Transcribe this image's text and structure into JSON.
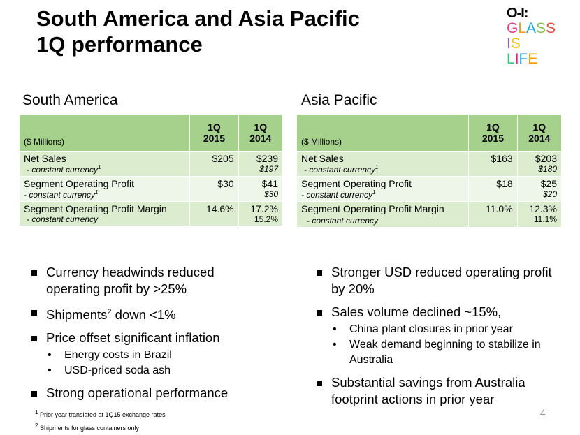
{
  "title_line1": "South America and Asia Pacific",
  "title_line2": "1Q performance",
  "logo": {
    "mark": "O-I:",
    "w1": "GLASS",
    "w2": "IS",
    "w3": "LIFE",
    "colors": [
      "#e6417f",
      "#f39c12",
      "#1aa3d9",
      "#8bc34a",
      "#e74c3c",
      "#9b59b6",
      "#f1c40f",
      "#2ecc71",
      "#e91e63",
      "#3498db",
      "#ff9800",
      "#4caf50"
    ]
  },
  "sa": {
    "heading": "South America",
    "unit": "($ Millions)",
    "col1": "1Q 2015",
    "col1a": "1Q",
    "col1b": "2015",
    "col2a": "1Q",
    "col2b": "2014",
    "r1_label": "Net Sales",
    "r1_sub": "- constant currency",
    "r1_v1": "$205",
    "r1_v2": "$239",
    "r1_v2s": "$197",
    "r2_label": "Segment Operating Profit",
    "r2_sub": "- constant currency",
    "r2_v1": "$30",
    "r2_v2": "$41",
    "r2_v2s": "$30",
    "r3_label": "Segment Operating Profit Margin",
    "r3_sub": "- constant currency",
    "r3_v1": "14.6%",
    "r3_v2": "17.2%",
    "r3_v2s": "15.2%",
    "b1": "Currency headwinds reduced operating profit by >25%",
    "b2a": "Shipments",
    "b2sup": "2",
    "b2b": " down <1%",
    "b3": "Price offset significant inflation",
    "b3s1": "Energy costs in Brazil",
    "b3s2": "USD-priced soda ash",
    "b4": "Strong operational performance"
  },
  "ap": {
    "heading": "Asia Pacific",
    "unit": "($ Millions)",
    "col1a": "1Q",
    "col1b": "2015",
    "col2a": "1Q",
    "col2b": "2014",
    "r1_label": "Net Sales",
    "r1_sub": "- constant currency",
    "r1_v1": "$163",
    "r1_v2": "$203",
    "r1_v2s": "$180",
    "r2_label": "Segment Operating Profit",
    "r2_sub": "- constant currency",
    "r2_v1": "$18",
    "r2_v2": "$25",
    "r2_v2s": "$20",
    "r3_label": "Segment Operating Profit Margin",
    "r3_sub": "- constant currency",
    "r3_v1": "11.0%",
    "r3_v2": "12.3%",
    "r3_v2s": "11.1%",
    "b1": "Stronger USD reduced operating profit by 20%",
    "b2": "Sales volume declined ~15%,",
    "b2s1": "China plant closures in prior year",
    "b2s2": "Weak demand beginning to stabilize in Australia",
    "b3": "Substantial savings from Australia footprint actions in prior year"
  },
  "footnote1": "Prior year translated at 1Q15 exchange rates",
  "footnote2": "Shipments for glass containers only",
  "fn_mark1": "1",
  "fn_mark2": "2",
  "page_number": "4"
}
